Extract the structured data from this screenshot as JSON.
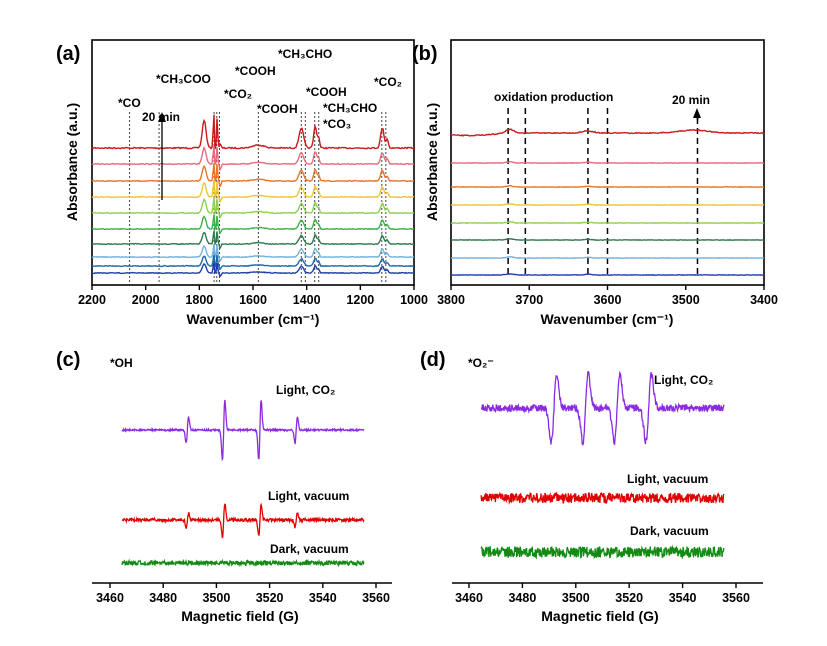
{
  "figure": {
    "panels": [
      {
        "id": "a",
        "label": "(a)",
        "xlabel": "Wavenumber (cm⁻¹)",
        "ylabel": "Absorbance (a.u.)",
        "x_ticks": [
          "2200",
          "2000",
          "1800",
          "1600",
          "1400",
          "1200",
          "1000"
        ],
        "annotations": [
          {
            "text": "*CO"
          },
          {
            "text": "20 min"
          },
          {
            "text": "*CH₃COO"
          },
          {
            "text": "*CO₂"
          },
          {
            "text": "*COOH"
          },
          {
            "text": "*COOH"
          },
          {
            "text": "*CH₃CHO"
          },
          {
            "text": "*COOH"
          },
          {
            "text": "*CH₃CHO"
          },
          {
            "text": "*CO₃"
          },
          {
            "text": "*CO₂"
          }
        ]
      },
      {
        "id": "b",
        "label": "(b)",
        "xlabel": "Wavenumber (cm⁻¹)",
        "ylabel": "Absorbance (a.u.)",
        "x_ticks": [
          "3800",
          "3700",
          "3600",
          "3500",
          "3400"
        ],
        "annotations": [
          {
            "text": "oxidation production"
          },
          {
            "text": "20 min"
          }
        ]
      },
      {
        "id": "c",
        "label": "(c)",
        "species": "*OH",
        "xlabel": "Magnetic field (G)",
        "x_ticks": [
          "3460",
          "3480",
          "3500",
          "3520",
          "3540",
          "3560"
        ],
        "traces": [
          {
            "name": "Light, CO₂"
          },
          {
            "name": "Light, vacuum"
          },
          {
            "name": "Dark, vacuum"
          }
        ]
      },
      {
        "id": "d",
        "label": "(d)",
        "species": "*O₂⁻",
        "xlabel": "Magnetic field (G)",
        "x_ticks": [
          "3460",
          "3480",
          "3500",
          "3520",
          "3540",
          "3560"
        ],
        "traces": [
          {
            "name": "Light, CO₂"
          },
          {
            "name": "Light, vacuum"
          },
          {
            "name": "Dark, vacuum"
          }
        ]
      }
    ],
    "colors": {
      "ftir_series": [
        "#c8191c",
        "#e46d7b",
        "#e8762a",
        "#efc43a",
        "#8ed050",
        "#3bb24a",
        "#2e7a4c",
        "#6fb4de",
        "#1a6aa8",
        "#1f3fa8"
      ],
      "epr_co2": "#8a2be2",
      "epr_light_vacuum": "#e00000",
      "epr_dark_vacuum": "#138a13"
    }
  },
  "chart_data": [
    {
      "type": "line",
      "panel": "a",
      "xlabel": "Wavenumber (cm⁻¹)",
      "ylabel": "Absorbance (a.u.)",
      "xlim": [
        2200,
        1000
      ],
      "x_reversed": true,
      "y_ticks_shown": false,
      "series_count": 10,
      "series_note": "stacked in-situ spectra, bottom to top increasing time up to 20 min",
      "peak_markers_cm1": [
        2060,
        1950,
        1745,
        1735,
        1725,
        1580,
        1420,
        1405,
        1370,
        1355,
        1120,
        1105
      ],
      "main_peaks_cm1": [
        1780,
        1745,
        1735,
        1718,
        1420,
        1370,
        1115
      ]
    },
    {
      "type": "line",
      "panel": "b",
      "xlabel": "Wavenumber (cm⁻¹)",
      "ylabel": "Absorbance (a.u.)",
      "xlim": [
        3800,
        3400
      ],
      "x_reversed": true,
      "y_ticks_shown": false,
      "series_count": 8,
      "peak_markers_cm1": [
        3727,
        3705,
        3625,
        3600,
        3485
      ]
    },
    {
      "type": "line",
      "panel": "c",
      "xlabel": "Magnetic field (G)",
      "xlim": [
        3455,
        3565
      ],
      "y_ticks_shown": false,
      "series": [
        {
          "name": "Light, CO₂",
          "line_centers_G": [
            3487,
            3502,
            3517,
            3532
          ],
          "relative_intensity": [
            1,
            2,
            2,
            1
          ],
          "amplitude": 1.0
        },
        {
          "name": "Light, vacuum",
          "line_centers_G": [
            3487,
            3502,
            3517,
            3532
          ],
          "relative_intensity": [
            1,
            2,
            2,
            1
          ],
          "amplitude": 0.45
        },
        {
          "name": "Dark, vacuum",
          "line_centers_G": [],
          "amplitude": 0.0
        }
      ]
    },
    {
      "type": "line",
      "panel": "d",
      "xlabel": "Magnetic field (G)",
      "xlim": [
        3455,
        3565
      ],
      "y_ticks_shown": false,
      "series": [
        {
          "name": "Light, CO₂",
          "line_centers_G": [
            3490,
            3503,
            3516,
            3529
          ],
          "amplitude": 1.0
        },
        {
          "name": "Light, vacuum",
          "line_centers_G": [],
          "amplitude": 0.0
        },
        {
          "name": "Dark, vacuum",
          "line_centers_G": [],
          "amplitude": 0.0
        }
      ]
    }
  ]
}
